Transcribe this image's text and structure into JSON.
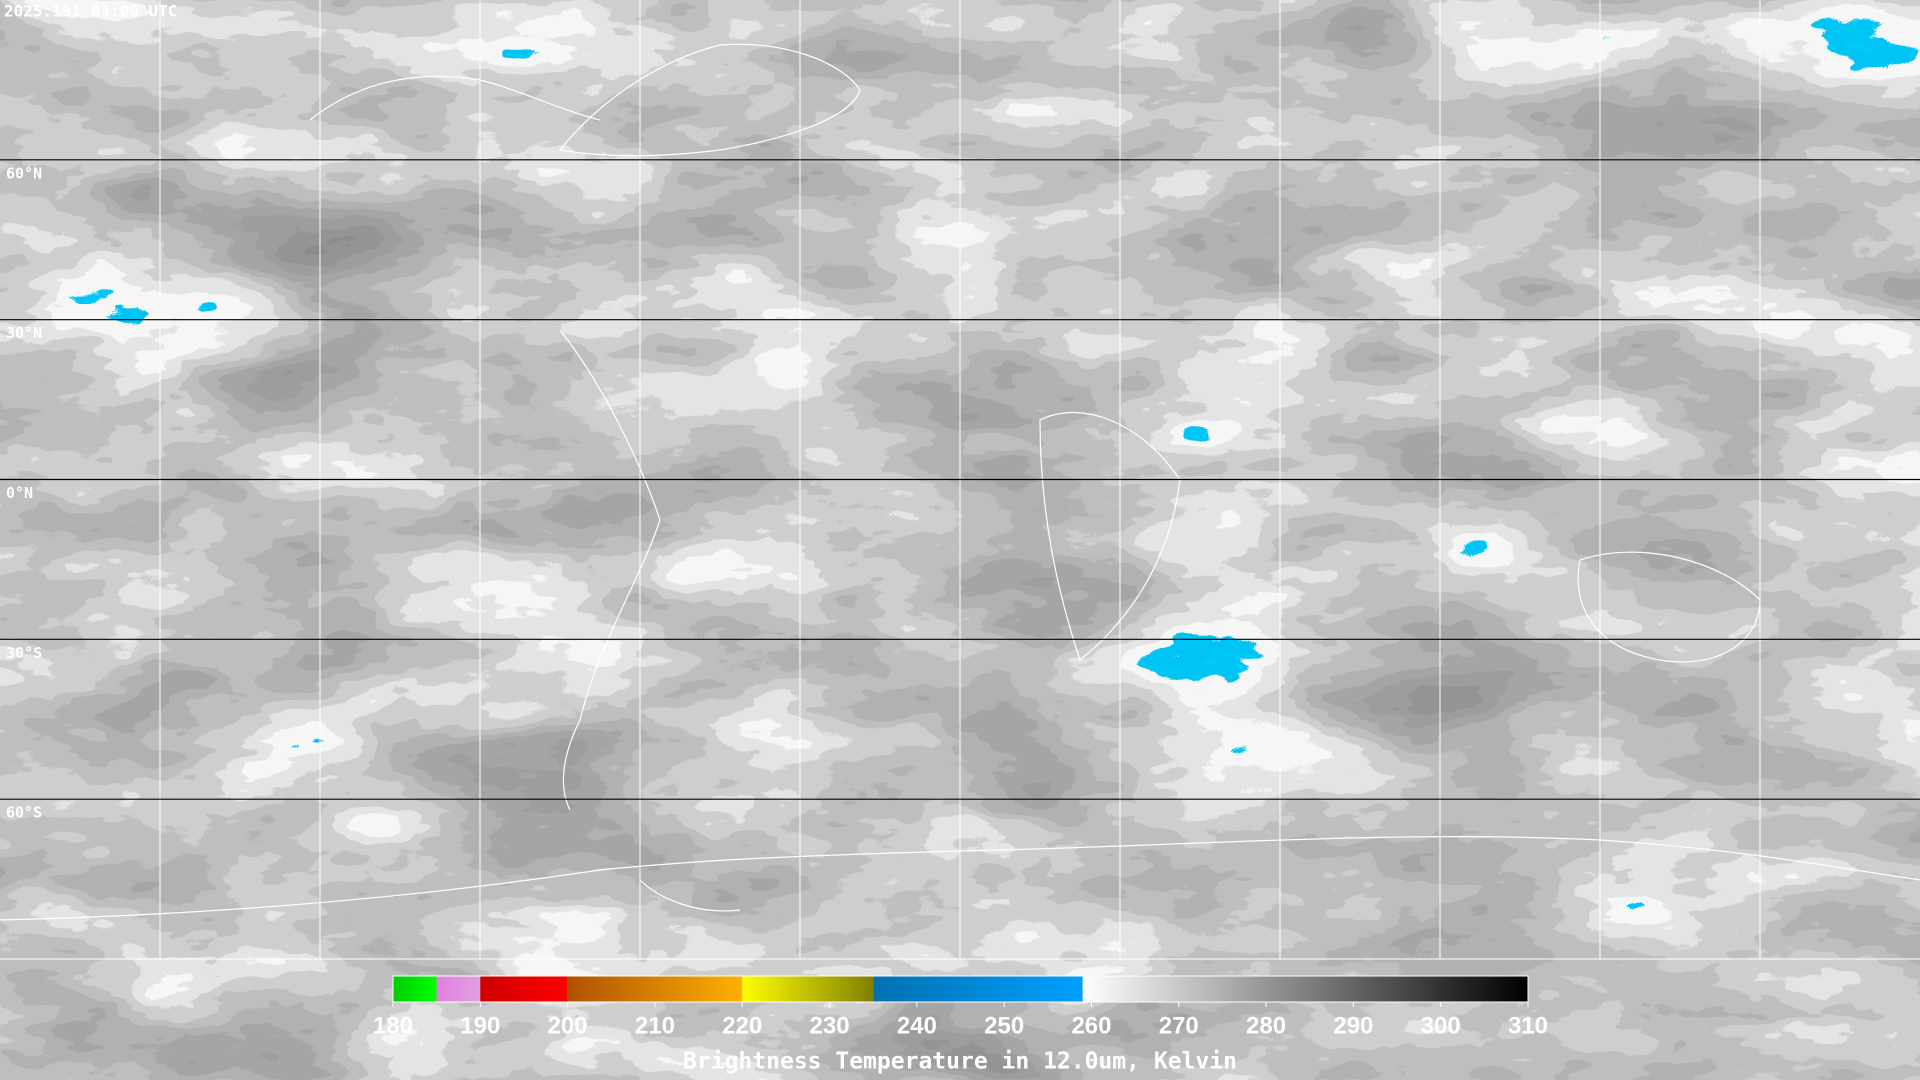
{
  "header": {
    "timestamp": "2025.191 03:00 UTC"
  },
  "map": {
    "lon_grid": [
      -150,
      -120,
      -90,
      -60,
      -30,
      0,
      30,
      60,
      90,
      120,
      150
    ],
    "lat_grid": [
      {
        "value": 60,
        "label": "60°N"
      },
      {
        "value": 30,
        "label": "30°N"
      },
      {
        "value": 0,
        "label": "0°N"
      },
      {
        "value": -30,
        "label": "30°S"
      },
      {
        "value": -60,
        "label": "60°S"
      }
    ]
  },
  "colorbar": {
    "title": "Brightness Temperature in 12.0um, Kelvin",
    "lim": [
      180,
      310
    ],
    "ticks": [
      180,
      190,
      200,
      210,
      220,
      230,
      240,
      250,
      260,
      270,
      280,
      290,
      300,
      310
    ],
    "segments": [
      {
        "from": 180,
        "to": 185,
        "colors": [
          "#00cc00",
          "#00ff00"
        ]
      },
      {
        "from": 185,
        "to": 190,
        "colors": [
          "#e080e0",
          "#e0a0e0"
        ]
      },
      {
        "from": 190,
        "to": 200,
        "colors": [
          "#cc0000",
          "#ff0000"
        ]
      },
      {
        "from": 200,
        "to": 220,
        "colors": [
          "#b05000",
          "#ffb000"
        ]
      },
      {
        "from": 220,
        "to": 235,
        "colors": [
          "#ffff00",
          "#808000"
        ]
      },
      {
        "from": 235,
        "to": 259,
        "colors": [
          "#0070b0",
          "#00a0ff"
        ]
      },
      {
        "from": 259,
        "to": 310,
        "colors": [
          "#ffffff",
          "#000000"
        ]
      }
    ]
  }
}
